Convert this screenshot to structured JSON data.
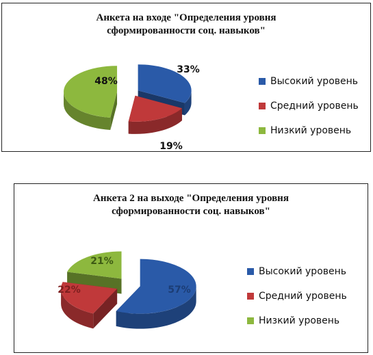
{
  "chart_data": [
    {
      "type": "pie",
      "title_lines": [
        "Анкета на входе \"Определения уровня",
        "сформированности соц. навыков\""
      ],
      "categories": [
        "Высокий уровень",
        "Средний уровень",
        "Низкий уровень"
      ],
      "values": [
        33,
        19,
        48
      ],
      "labels": [
        "33%",
        "19%",
        "48%"
      ],
      "colors": [
        "#2a5aa8",
        "#c0393a",
        "#8db83e"
      ],
      "exploded": true,
      "legend_position": "right"
    },
    {
      "type": "pie",
      "title_lines": [
        "Анкета 2 на выходе \"Определения уровня",
        "сформированности соц. навыков\""
      ],
      "categories": [
        "Высокий уровень",
        "Средний уровень",
        "Низкий уровень"
      ],
      "values": [
        57,
        22,
        21
      ],
      "labels": [
        "57%",
        "22%",
        "21%"
      ],
      "colors": [
        "#2a5aa8",
        "#c0393a",
        "#8db83e"
      ],
      "exploded": true,
      "legend_position": "right"
    }
  ]
}
